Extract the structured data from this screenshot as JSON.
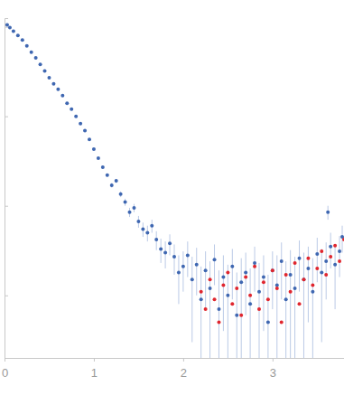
{
  "chart_data": {
    "type": "scatter",
    "log": "y",
    "tick_labels": "x",
    "xlim": [
      0,
      3.8
    ],
    "xticks": [
      0,
      1,
      2,
      3
    ],
    "ylim": [
      0.0002,
      1.25
    ],
    "yticks": [
      0.001,
      0.01,
      0.1,
      1
    ],
    "series": [
      {
        "color": "#3f67b1",
        "marker": "circle",
        "x": [
          0.03,
          0.06,
          0.1,
          0.15,
          0.2,
          0.25,
          0.3,
          0.35,
          0.4,
          0.45,
          0.5,
          0.55,
          0.6,
          0.65,
          0.7,
          0.75,
          0.8,
          0.85,
          0.9,
          0.95,
          1.0,
          1.05,
          1.1,
          1.15,
          1.2,
          1.25,
          1.3,
          1.35,
          1.4,
          1.45,
          1.5,
          1.55,
          1.6,
          1.65,
          1.7,
          1.75,
          1.8,
          1.85,
          1.9,
          1.95,
          2.0,
          2.05,
          2.1,
          2.15,
          2.2,
          2.25,
          2.3,
          2.35,
          2.4,
          2.45,
          2.5,
          2.55,
          2.6,
          2.65,
          2.7,
          2.75,
          2.8,
          2.85,
          2.9,
          2.95,
          3.0,
          3.05,
          3.1,
          3.15,
          3.2,
          3.25,
          3.3,
          3.35,
          3.4,
          3.45,
          3.5,
          3.55,
          3.6,
          3.62,
          3.65,
          3.7,
          3.75,
          3.78
        ],
        "values": [
          1.05,
          0.98,
          0.89,
          0.8,
          0.71,
          0.61,
          0.52,
          0.45,
          0.38,
          0.32,
          0.27,
          0.23,
          0.2,
          0.17,
          0.14,
          0.12,
          0.1,
          0.083,
          0.069,
          0.055,
          0.043,
          0.034,
          0.027,
          0.022,
          0.017,
          0.019,
          0.0135,
          0.011,
          0.0085,
          0.0095,
          0.0067,
          0.0055,
          0.005,
          0.006,
          0.0042,
          0.0033,
          0.003,
          0.0038,
          0.0027,
          0.0018,
          0.0021,
          0.0028,
          0.0015,
          0.0022,
          0.0009,
          0.0019,
          0.0012,
          0.0025,
          0.0007,
          0.0016,
          0.001,
          0.0021,
          0.0006,
          0.0014,
          0.0018,
          0.0008,
          0.0023,
          0.0011,
          0.0016,
          0.0005,
          0.0019,
          0.0013,
          0.0024,
          0.0009,
          0.0017,
          0.0012,
          0.0026,
          0.0015,
          0.002,
          0.0011,
          0.0029,
          0.0018,
          0.0024,
          0.0085,
          0.0035,
          0.0022,
          0.0031,
          0.0045
        ],
        "errors": [
          0.005,
          0.004,
          0.003,
          0.003,
          0.002,
          0.002,
          0.002,
          0.001,
          0.001,
          0.001,
          0.001,
          0.001,
          0.001,
          0.001,
          0.001,
          0.001,
          0.001,
          0.001,
          0.001,
          0.001,
          0.001,
          0.001,
          0.001,
          0.001,
          0.001,
          0.001,
          0.001,
          0.001,
          0.001,
          0.001,
          0.001,
          0.001,
          0.001,
          0.001,
          0.001,
          0.001,
          0.001,
          0.001,
          0.001,
          0.001,
          0.001,
          0.0012,
          0.0012,
          0.0012,
          0.0012,
          0.0012,
          0.0012,
          0.0012,
          0.0012,
          0.0012,
          0.0012,
          0.0012,
          0.0012,
          0.0012,
          0.0012,
          0.0012,
          0.0012,
          0.0012,
          0.0012,
          0.0012,
          0.0012,
          0.0015,
          0.0015,
          0.0015,
          0.0015,
          0.0015,
          0.0015,
          0.0015,
          0.0015,
          0.0015,
          0.0015,
          0.0015,
          0.0015,
          0.0015,
          0.0015,
          0.0015,
          0.0015,
          0.0015
        ]
      },
      {
        "color": "#e0262e",
        "marker": "circle",
        "x": [
          2.2,
          2.25,
          2.3,
          2.35,
          2.4,
          2.45,
          2.5,
          2.55,
          2.6,
          2.65,
          2.7,
          2.75,
          2.8,
          2.85,
          2.9,
          2.95,
          3.0,
          3.05,
          3.1,
          3.15,
          3.2,
          3.25,
          3.3,
          3.35,
          3.4,
          3.45,
          3.5,
          3.55,
          3.6,
          3.65,
          3.7,
          3.75,
          3.8
        ],
        "values": [
          0.0011,
          0.0007,
          0.0015,
          0.0009,
          0.0005,
          0.0013,
          0.0018,
          0.0008,
          0.0012,
          0.0006,
          0.0016,
          0.001,
          0.0021,
          0.0007,
          0.0014,
          0.0009,
          0.0019,
          0.0012,
          0.0005,
          0.0017,
          0.0011,
          0.0023,
          0.0008,
          0.0015,
          0.0026,
          0.0013,
          0.002,
          0.0031,
          0.0017,
          0.0027,
          0.0036,
          0.0024,
          0.0042
        ]
      }
    ]
  }
}
